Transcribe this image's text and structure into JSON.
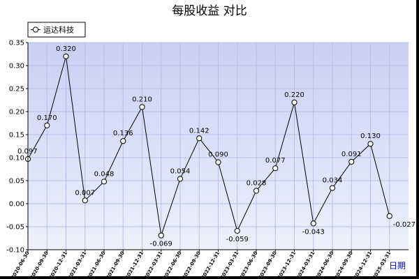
{
  "chart_data": {
    "type": "line",
    "title": "每股收益  对比",
    "unit_label": "日期",
    "ylim": [
      -0.1,
      0.35
    ],
    "y_ticks": [
      "0.35",
      "0.30",
      "0.25",
      "0.20",
      "0.15",
      "0.10",
      "0.05",
      "0.00",
      "-0.05",
      "-0.10"
    ],
    "y_tick_values": [
      0.35,
      0.3,
      0.25,
      0.2,
      0.15,
      0.1,
      0.05,
      0.0,
      -0.05,
      -0.1
    ],
    "grid": true,
    "legend": "top-left",
    "categories": [
      "2020-06-30",
      "2020-09-30",
      "2020-12-31",
      "2021-03-31",
      "2021-06-30",
      "2021-09-30",
      "2021-12-31",
      "2022-03-31",
      "2022-06-30",
      "2022-09-30",
      "2022-12-31",
      "2023-03-31",
      "2023-06-30",
      "2023-09-30",
      "2023-12-31",
      "2024-03-31",
      "2024-06-30",
      "2024-09-30",
      "2024-12-31",
      "2025-03-31"
    ],
    "series": [
      {
        "name": "运达科技",
        "color": "#000000",
        "values": [
          0.097,
          0.17,
          0.32,
          0.007,
          0.048,
          0.136,
          0.21,
          -0.069,
          0.054,
          0.142,
          0.09,
          -0.059,
          0.028,
          0.077,
          0.22,
          -0.043,
          0.034,
          0.091,
          0.13,
          -0.027
        ],
        "labels": [
          "0.097",
          "0.170",
          "0.320",
          "0.007",
          "0.048",
          "0.136",
          "0.210",
          "-0.069",
          "0.054",
          "0.142",
          "0.090",
          "-0.059",
          "0.028",
          "0.077",
          "0.220",
          "-0.043",
          "0.034",
          "0.091",
          "0.130",
          "-0.027"
        ]
      }
    ],
    "colors": {
      "plot_bg_top": "#c8d0f4",
      "plot_bg_bottom": "#eef0fc",
      "grid": "#b7bfe6",
      "axis": "#000000"
    }
  }
}
